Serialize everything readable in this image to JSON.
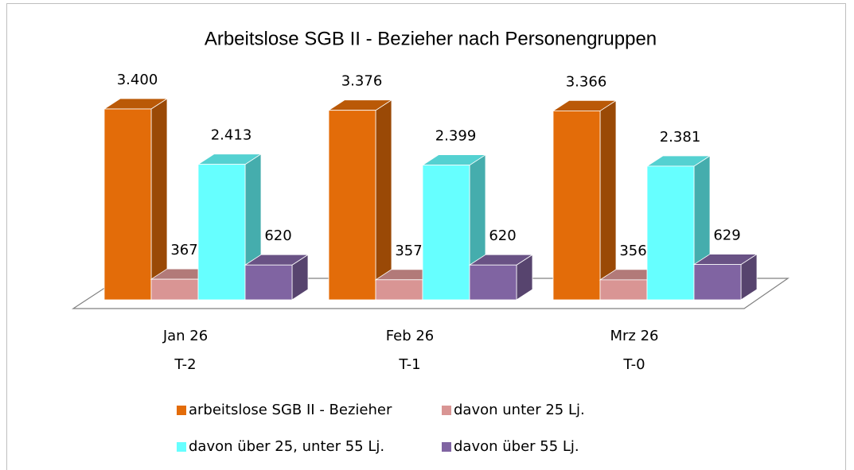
{
  "chart_data": {
    "type": "bar3d",
    "title": "Arbeitslose SGB II - Bezieher nach Personengruppen",
    "categories": [
      [
        "Jan 26",
        "T-2"
      ],
      [
        "Feb 26",
        "T-1"
      ],
      [
        "Mrz 26",
        "T-0"
      ]
    ],
    "series": [
      {
        "name": "arbeitslose SGB II - Bezieher",
        "color": "#e36c09",
        "values": [
          3400,
          3376,
          3366
        ],
        "value_labels": [
          "3.400",
          "3.376",
          "3.366"
        ]
      },
      {
        "name": "davon unter 25 Lj.",
        "color": "#d99594",
        "values": [
          367,
          357,
          356
        ]
      },
      {
        "name": "davon über 25, unter 55 Lj.",
        "color": "#66ffff",
        "values": [
          2413,
          2399,
          2381
        ],
        "value_labels": [
          "2.413",
          "2.399",
          "2.381"
        ]
      },
      {
        "name": "davon über 55 Lj.",
        "color": "#8064a2",
        "values": [
          620,
          620,
          629
        ]
      }
    ]
  }
}
